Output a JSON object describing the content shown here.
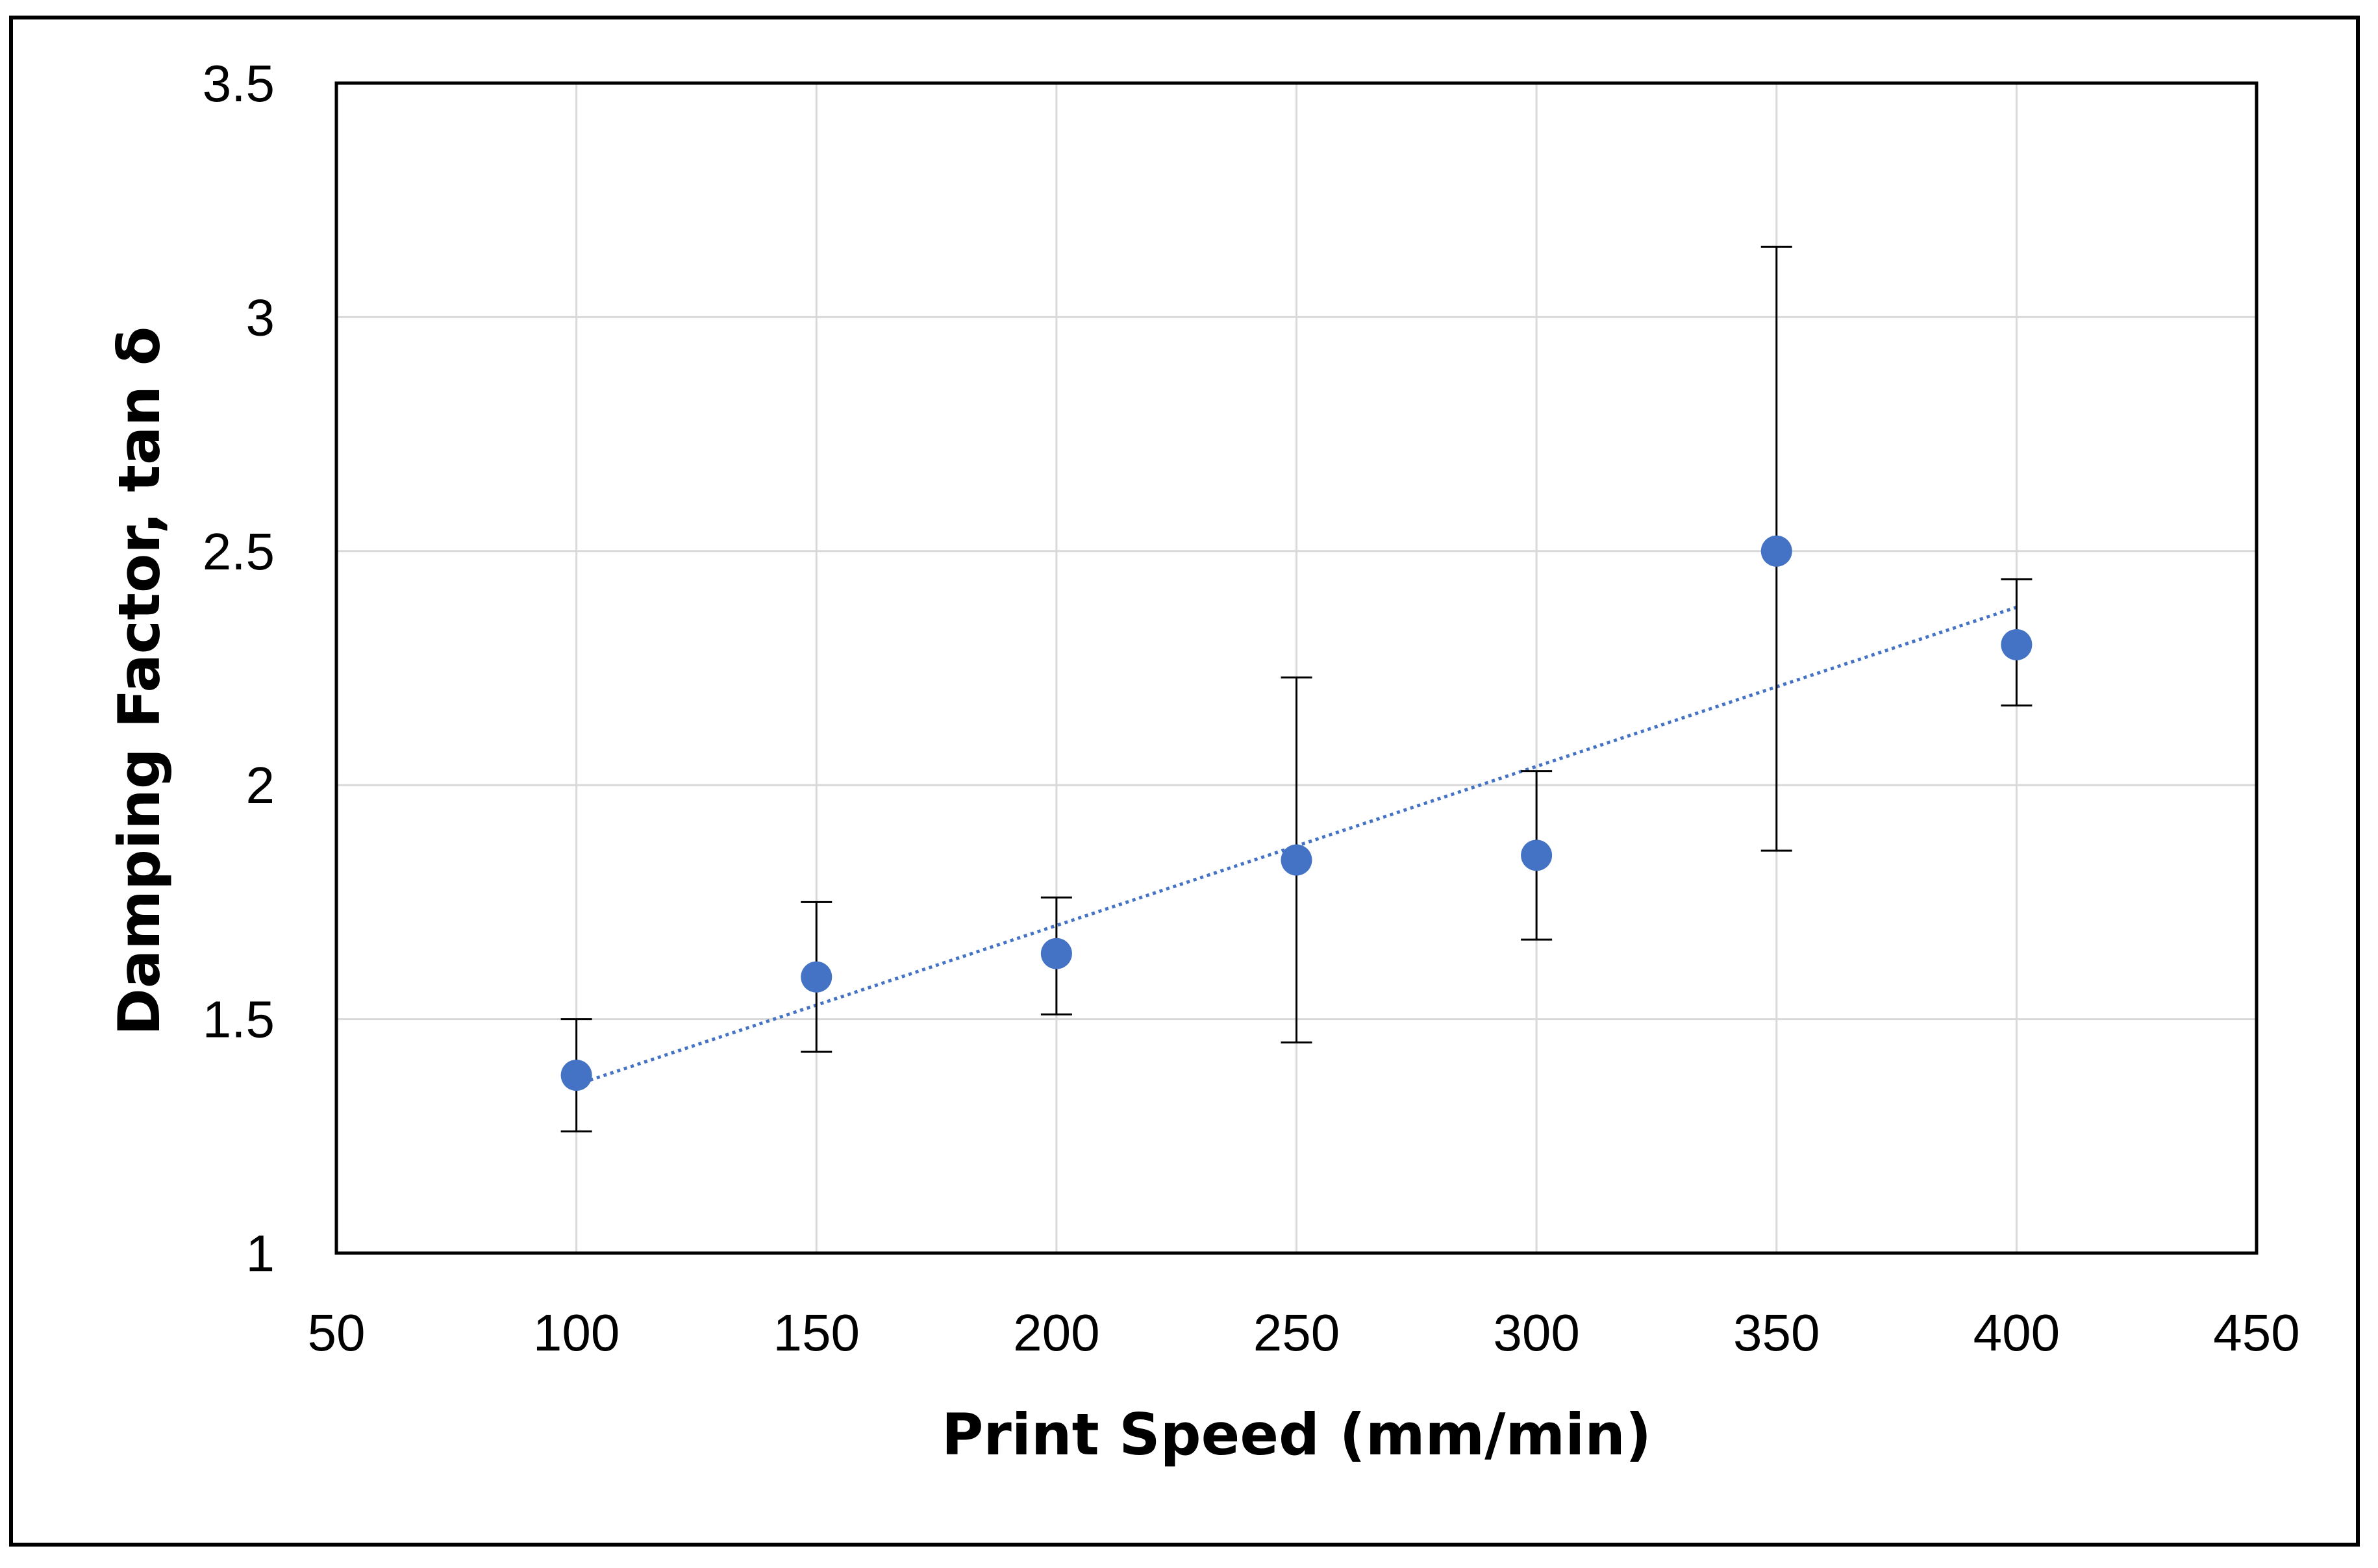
{
  "chart_data": {
    "type": "scatter",
    "title": "",
    "xlabel": "Print Speed (mm/min)",
    "ylabel": "Damping Factor, tan δ",
    "xlim": [
      50,
      450
    ],
    "ylim": [
      1,
      3.5
    ],
    "xticks": [
      50,
      100,
      150,
      200,
      250,
      300,
      350,
      400,
      450
    ],
    "yticks": [
      1,
      1.5,
      2,
      2.5,
      3,
      3.5
    ],
    "xtick_labels": [
      "50",
      "100",
      "150",
      "200",
      "250",
      "300",
      "350",
      "400",
      "450"
    ],
    "ytick_labels": [
      "1",
      "1.5",
      "2",
      "2.5",
      "3",
      "3.5"
    ],
    "grid": true,
    "legend": "none",
    "marker_color": "#4472C4",
    "error_bar_color": "#000000",
    "trendline": {
      "type": "linear",
      "style": "dotted",
      "color": "#4472C4",
      "x_range": [
        100,
        400
      ],
      "y_start": 1.36,
      "y_end": 2.38
    },
    "series": [
      {
        "x": [
          100,
          150,
          200,
          250,
          300,
          350,
          400
        ],
        "y": [
          1.38,
          1.59,
          1.64,
          1.84,
          1.85,
          2.5,
          2.3
        ],
        "error_high": [
          1.5,
          1.75,
          1.76,
          2.23,
          2.03,
          3.15,
          2.44
        ],
        "error_low": [
          1.26,
          1.43,
          1.51,
          1.45,
          1.67,
          1.86,
          2.17
        ]
      }
    ]
  }
}
